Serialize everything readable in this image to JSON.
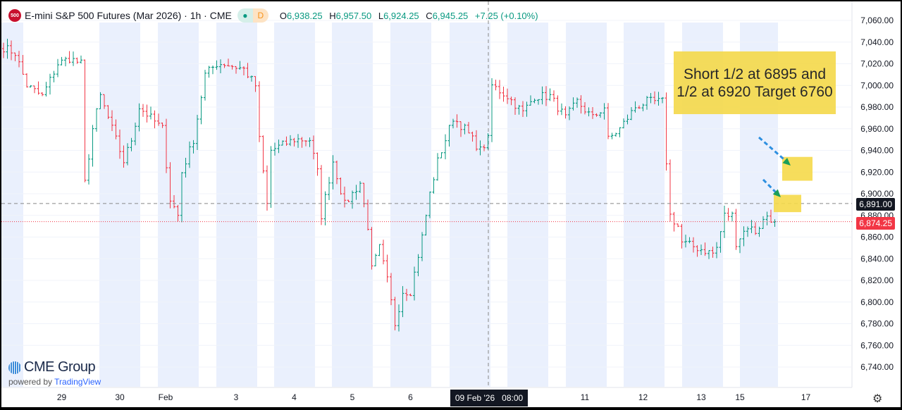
{
  "header": {
    "symbol_badge": "500",
    "title": "E-mini S&P 500 Futures (Mar 2026) · 1h · CME",
    "status_dot": "●",
    "status_letter": "D",
    "o_label": "O",
    "o": "6,938.25",
    "h_label": "H",
    "h": "6,957.50",
    "l_label": "L",
    "l": "6,924.25",
    "c_label": "C",
    "c": "6,945.25",
    "change": "+7.25 (+0.10%)"
  },
  "annotation": "Short 1/2 at 6895 and 1/2 at 6920 Target 6760",
  "brand": {
    "name": "CME Group",
    "powered": "powered by",
    "tv": "TradingView"
  },
  "crosshair": {
    "date": "09 Feb '26",
    "time": "08:00"
  },
  "price_labels": {
    "dashed": "6,891.00",
    "last": "6,874.25"
  },
  "colors": {
    "up": "#089981",
    "down": "#f23645",
    "band": "#eaf0fd",
    "highlight": "#f5d94a",
    "arrow": "#2d8fe0"
  },
  "chart_data": {
    "type": "candlestick",
    "title": "E-mini S&P 500 Futures (Mar 2026) 1h",
    "ylim": [
      6730,
      7070
    ],
    "yticks": [
      7060,
      7040,
      7020,
      7000,
      6980,
      6960,
      6940,
      6920,
      6900,
      6880,
      6860,
      6840,
      6820,
      6800,
      6780,
      6760,
      6740
    ],
    "ytick_labels": [
      "7,060.00",
      "7,040.00",
      "7,020.00",
      "7,000.00",
      "6,980.00",
      "6,960.00",
      "6,940.00",
      "6,920.00",
      "6,900.00",
      "6,880.00",
      "6,860.00",
      "6,840.00",
      "6,820.00",
      "6,800.00",
      "6,780.00",
      "6,760.00",
      "6,740.00"
    ],
    "xtick_labels": [
      [
        "29",
        15
      ],
      [
        "30",
        30
      ],
      [
        "Feb",
        40
      ],
      [
        "3",
        60
      ],
      [
        "4",
        75
      ],
      [
        "5",
        90
      ],
      [
        "6",
        105
      ],
      [
        "11",
        150
      ],
      [
        "12",
        165
      ],
      [
        "13",
        180
      ],
      [
        "15",
        190
      ],
      [
        "17",
        207
      ]
    ],
    "candle_count": 200,
    "close_anchors": [
      [
        0,
        7035
      ],
      [
        3,
        7030
      ],
      [
        6,
        7000
      ],
      [
        10,
        6990
      ],
      [
        14,
        7020
      ],
      [
        17,
        7025
      ],
      [
        20,
        7020
      ],
      [
        21,
        6910
      ],
      [
        23,
        6960
      ],
      [
        25,
        6990
      ],
      [
        28,
        6960
      ],
      [
        31,
        6930
      ],
      [
        33,
        6950
      ],
      [
        35,
        6980
      ],
      [
        38,
        6970
      ],
      [
        41,
        6960
      ],
      [
        43,
        6895
      ],
      [
        45,
        6880
      ],
      [
        46,
        6920
      ],
      [
        49,
        6950
      ],
      [
        52,
        7010
      ],
      [
        55,
        7020
      ],
      [
        57,
        7020
      ],
      [
        62,
        7015
      ],
      [
        65,
        7000
      ],
      [
        66,
        6950
      ],
      [
        68,
        6890
      ],
      [
        69,
        6940
      ],
      [
        72,
        6945
      ],
      [
        75,
        6950
      ],
      [
        79,
        6950
      ],
      [
        81,
        6920
      ],
      [
        82,
        6880
      ],
      [
        85,
        6930
      ],
      [
        88,
        6890
      ],
      [
        92,
        6910
      ],
      [
        94,
        6870
      ],
      [
        95,
        6830
      ],
      [
        97,
        6850
      ],
      [
        99,
        6820
      ],
      [
        101,
        6780
      ],
      [
        103,
        6810
      ],
      [
        105,
        6810
      ],
      [
        108,
        6860
      ],
      [
        110,
        6900
      ],
      [
        112,
        6930
      ],
      [
        115,
        6960
      ],
      [
        116,
        6970
      ],
      [
        119,
        6960
      ],
      [
        123,
        6940
      ],
      [
        125,
        6950
      ],
      [
        126,
        7000
      ],
      [
        130,
        6990
      ],
      [
        134,
        6975
      ],
      [
        137,
        6990
      ],
      [
        141,
        6990
      ],
      [
        145,
        6970
      ],
      [
        148,
        6985
      ],
      [
        152,
        6970
      ],
      [
        155,
        6980
      ],
      [
        156,
        6950
      ],
      [
        159,
        6960
      ],
      [
        163,
        6980
      ],
      [
        166,
        6985
      ],
      [
        170,
        6985
      ],
      [
        171,
        6930
      ],
      [
        172,
        6880
      ],
      [
        174,
        6870
      ],
      [
        175,
        6855
      ],
      [
        179,
        6850
      ],
      [
        183,
        6845
      ],
      [
        184,
        6850
      ],
      [
        186,
        6880
      ],
      [
        188,
        6880
      ],
      [
        189,
        6855
      ],
      [
        192,
        6870
      ],
      [
        194,
        6865
      ],
      [
        197,
        6880
      ],
      [
        199,
        6874.25
      ]
    ],
    "hlines": [
      {
        "value": 6891,
        "style": "dashed"
      },
      {
        "value": 6874.25,
        "style": "dotted-red"
      }
    ],
    "zones": [
      {
        "low": 6912,
        "high": 6934
      },
      {
        "low": 6883,
        "high": 6899
      }
    ]
  }
}
